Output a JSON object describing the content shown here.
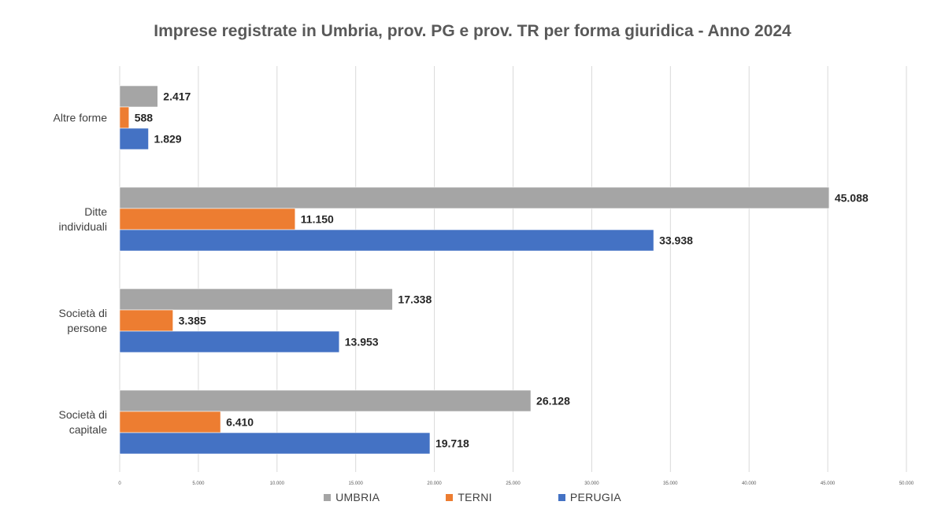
{
  "chart_data": {
    "type": "bar",
    "orientation": "horizontal",
    "title": "Imprese registrate in Umbria, prov. PG e prov. TR per forma giuridica - Anno 2024",
    "categories": [
      "Altre forme",
      "Ditte individuali",
      "Società di persone",
      "Società di capitale"
    ],
    "category_lines": [
      [
        "Altre forme"
      ],
      [
        "Ditte",
        "individuali"
      ],
      [
        "Società di",
        "persone"
      ],
      [
        "Società di",
        "capitale"
      ]
    ],
    "series": [
      {
        "name": "UMBRIA",
        "color": "#a5a5a5",
        "values": [
          2417,
          45088,
          17338,
          26128
        ],
        "labels": [
          "2.417",
          "45.088",
          "17.338",
          "26.128"
        ]
      },
      {
        "name": "TERNI",
        "color": "#ed7d31",
        "values": [
          588,
          11150,
          3385,
          6410
        ],
        "labels": [
          "588",
          "11.150",
          "3.385",
          "6.410"
        ]
      },
      {
        "name": "PERUGIA",
        "color": "#4472c4",
        "values": [
          1829,
          33938,
          13953,
          19718
        ],
        "labels": [
          "1.829",
          "33.938",
          "13.953",
          "19.718"
        ]
      }
    ],
    "xlim": [
      0,
      50000
    ],
    "x_ticks": [
      0,
      5000,
      10000,
      15000,
      20000,
      25000,
      30000,
      35000,
      40000,
      45000,
      50000
    ],
    "x_tick_labels": [
      "0",
      "5.000",
      "10.000",
      "15.000",
      "20.000",
      "25.000",
      "30.000",
      "35.000",
      "40.000",
      "45.000",
      "50.000"
    ],
    "grid": true,
    "legend_position": "bottom"
  }
}
